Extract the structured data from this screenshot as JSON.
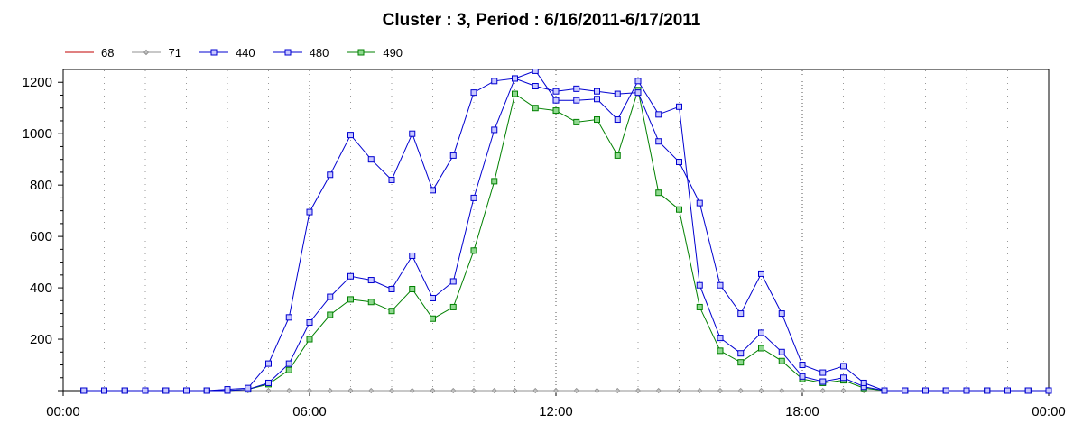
{
  "chart_data": {
    "type": "line",
    "title": "Cluster : 3, Period : 6/16/2011-6/17/2011",
    "xlabel": "",
    "ylabel": "",
    "x_ticks": [
      "00:00",
      "06:00",
      "12:00",
      "18:00",
      "00:00"
    ],
    "y_ticks": [
      200,
      400,
      600,
      800,
      1000,
      1200
    ],
    "ylim": [
      0,
      1250
    ],
    "x_range_hours": [
      0,
      24
    ],
    "grid": "vertical dotted at every hour",
    "legend_placement": "top-left",
    "x": [
      0.5,
      1.0,
      1.5,
      2.0,
      2.5,
      3.0,
      3.5,
      4.0,
      4.5,
      5.0,
      5.5,
      6.0,
      6.5,
      7.0,
      7.5,
      8.0,
      8.5,
      9.0,
      9.5,
      10.0,
      10.5,
      11.0,
      11.5,
      12.0,
      12.5,
      13.0,
      13.5,
      14.0,
      14.5,
      15.0,
      15.5,
      16.0,
      16.5,
      17.0,
      17.5,
      18.0,
      18.5,
      19.0,
      19.5,
      20.0,
      20.5,
      21.0,
      21.5,
      22.0,
      22.5,
      23.0,
      23.5,
      24.0
    ],
    "series": [
      {
        "name": "68",
        "color": "#c00000",
        "marker": "none",
        "values": [
          0,
          0,
          0,
          0,
          0,
          0,
          0,
          0,
          0,
          0,
          0,
          0,
          0,
          0,
          0,
          0,
          0,
          0,
          0,
          0,
          0,
          0,
          0,
          0,
          0,
          0,
          0,
          0,
          0,
          0,
          0,
          0,
          0,
          0,
          0,
          0,
          0,
          0,
          0,
          0,
          0,
          0,
          0,
          0,
          0,
          0,
          0,
          0
        ]
      },
      {
        "name": "71",
        "color": "#909090",
        "marker": "diamond",
        "values": [
          0,
          0,
          0,
          0,
          0,
          0,
          0,
          0,
          0,
          0,
          0,
          0,
          0,
          0,
          0,
          0,
          0,
          0,
          0,
          0,
          0,
          0,
          0,
          0,
          0,
          0,
          0,
          0,
          0,
          0,
          0,
          0,
          0,
          0,
          0,
          0,
          0,
          0,
          0,
          0,
          0,
          0,
          0,
          0,
          0,
          0,
          0,
          0
        ]
      },
      {
        "name": "440",
        "color": "#0000d0",
        "marker": "square",
        "values": [
          0,
          0,
          0,
          0,
          0,
          0,
          0,
          5,
          10,
          105,
          285,
          695,
          840,
          995,
          900,
          820,
          1000,
          780,
          915,
          1160,
          1205,
          1215,
          1185,
          1165,
          1175,
          1165,
          1155,
          1160,
          970,
          890,
          730,
          410,
          300,
          455,
          300,
          100,
          70,
          95,
          30,
          0,
          0,
          0,
          0,
          0,
          0,
          0,
          0,
          0
        ]
      },
      {
        "name": "480",
        "color": "#0000d0",
        "marker": "square",
        "values": [
          0,
          0,
          0,
          0,
          0,
          0,
          0,
          0,
          5,
          30,
          105,
          265,
          365,
          445,
          430,
          395,
          525,
          360,
          425,
          750,
          1015,
          1215,
          1245,
          1130,
          1130,
          1135,
          1055,
          1205,
          1075,
          1105,
          410,
          205,
          145,
          225,
          150,
          55,
          35,
          50,
          15,
          0,
          0,
          0,
          0,
          0,
          0,
          0,
          0,
          0
        ]
      },
      {
        "name": "490",
        "color": "#008000",
        "marker": "square",
        "values": [
          0,
          0,
          0,
          0,
          0,
          0,
          0,
          0,
          5,
          25,
          80,
          200,
          295,
          355,
          345,
          310,
          395,
          280,
          325,
          545,
          815,
          1155,
          1100,
          1090,
          1045,
          1055,
          915,
          1170,
          770,
          705,
          325,
          155,
          110,
          165,
          115,
          45,
          30,
          40,
          10,
          0,
          0,
          0,
          0,
          0,
          0,
          0,
          0,
          0
        ]
      }
    ]
  }
}
